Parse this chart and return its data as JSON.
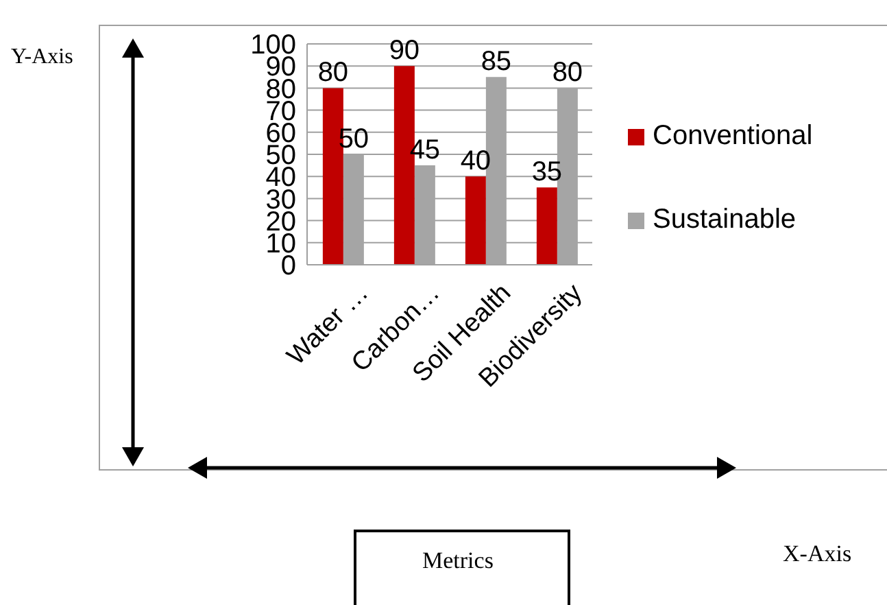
{
  "chart_data": {
    "type": "bar",
    "categories": [
      "Water …",
      "Carbon…",
      "Soil Health",
      "Biodiversity"
    ],
    "series": [
      {
        "name": "Conventional",
        "color": "#c00000",
        "values": [
          80,
          90,
          40,
          35
        ]
      },
      {
        "name": "Sustainable",
        "color": "#a5a5a5",
        "values": [
          50,
          45,
          85,
          80
        ]
      }
    ],
    "ylim": [
      0,
      100
    ],
    "yticks": [
      0,
      10,
      20,
      30,
      40,
      50,
      60,
      70,
      80,
      90,
      100
    ],
    "grid": "y",
    "legend": "right",
    "data_labels": true,
    "annotations": [
      "Y-Axis",
      "X-Axis",
      "Metrics"
    ]
  }
}
